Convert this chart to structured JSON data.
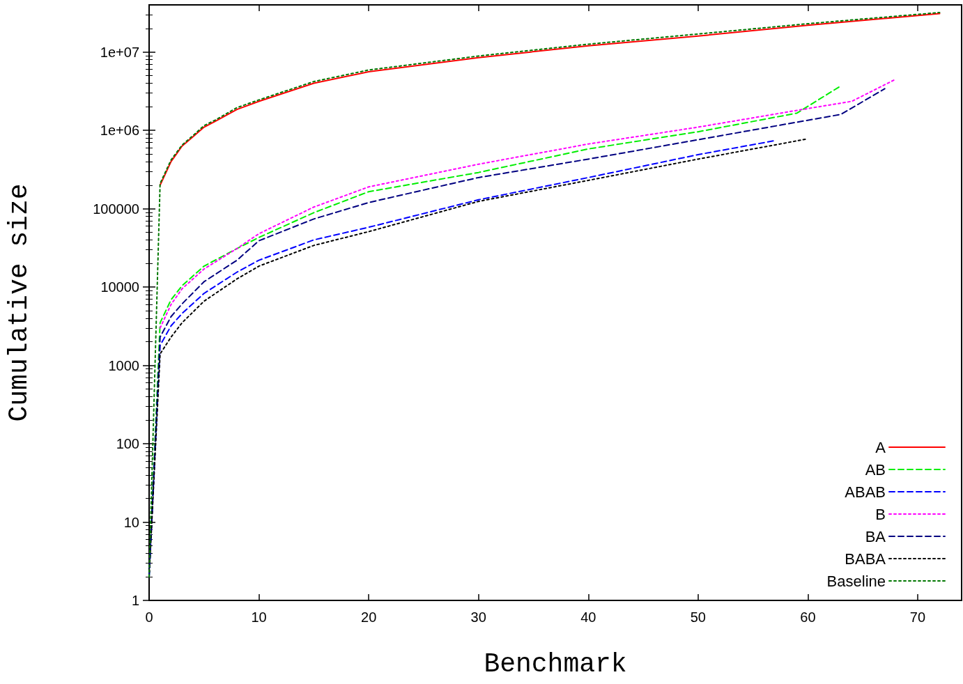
{
  "chart_data": {
    "type": "line",
    "xlabel": "Benchmark",
    "ylabel": "Cumulative size",
    "log": "y",
    "grid": false,
    "legend": "bottom right",
    "marker": "none",
    "xlim": [
      0,
      74
    ],
    "xticks": [
      0,
      10,
      20,
      30,
      40,
      50,
      60,
      70
    ],
    "ylim": [
      1,
      40000000
    ],
    "yticks": [
      1,
      10,
      100,
      1000,
      10000,
      100000,
      {
        "value": 1000000,
        "label": "1e+06"
      },
      {
        "value": 10000000,
        "label": "1e+07"
      }
    ],
    "series": [
      {
        "name": "A",
        "color": "#ff0000",
        "line_style": "solid",
        "x": [
          1,
          2,
          3,
          4,
          5,
          6,
          8,
          10,
          15,
          20,
          30,
          40,
          50,
          60,
          72
        ],
        "values": [
          200000,
          400000,
          630000,
          830000,
          1100000,
          1300000,
          1850000,
          2350000,
          4000000,
          5600000,
          8500000,
          12000000,
          16000000,
          22000000,
          31000000
        ]
      },
      {
        "name": "AB",
        "color": "#00ee00",
        "line_style": "dashed",
        "x": [
          0,
          1,
          2,
          3,
          5,
          8,
          10,
          15,
          20,
          30,
          40,
          50,
          59,
          63
        ],
        "values": [
          2,
          3500,
          6900,
          10400,
          18500,
          31000,
          43000,
          89000,
          165000,
          290000,
          580000,
          960000,
          1660000,
          3700000
        ]
      },
      {
        "name": "ABAB",
        "color": "#0000ff",
        "line_style": "dashed",
        "x": [
          0,
          1,
          2,
          3,
          5,
          8,
          10,
          15,
          20,
          30,
          40,
          50,
          57
        ],
        "values": [
          2,
          1800,
          3200,
          4600,
          8300,
          15500,
          22000,
          40000,
          58000,
          130000,
          250000,
          490000,
          740000
        ]
      },
      {
        "name": "B",
        "color": "#ff00ff",
        "line_style": "dotted",
        "x": [
          1,
          2,
          3,
          5,
          8,
          10,
          15,
          20,
          30,
          40,
          50,
          59,
          64,
          68
        ],
        "values": [
          3000,
          6000,
          9500,
          17000,
          31000,
          48000,
          105000,
          190000,
          370000,
          670000,
          1100000,
          1800000,
          2350000,
          4500000
        ]
      },
      {
        "name": "BA",
        "color": "#000080",
        "line_style": "dashed",
        "x": [
          0,
          1,
          2,
          3,
          5,
          8,
          10,
          15,
          20,
          30,
          40,
          50,
          63,
          67
        ],
        "values": [
          2,
          2300,
          4200,
          6100,
          11700,
          22000,
          39000,
          74000,
          120000,
          250000,
          430000,
          760000,
          1600000,
          3400000
        ]
      },
      {
        "name": "BABA",
        "color": "#000000",
        "line_style": "dotted",
        "x": [
          0,
          1,
          2,
          3,
          5,
          8,
          10,
          15,
          20,
          30,
          40,
          50,
          60
        ],
        "values": [
          2,
          1400,
          2300,
          3500,
          6600,
          12700,
          18500,
          34000,
          51000,
          124000,
          230000,
          430000,
          780000
        ]
      },
      {
        "name": "Baseline",
        "color": "#007700",
        "line_style": "dotted",
        "x": [
          0,
          1,
          2,
          3,
          4,
          5,
          6,
          8,
          10,
          15,
          20,
          30,
          40,
          50,
          60,
          72
        ],
        "values": [
          2,
          210000,
          420000,
          650000,
          860000,
          1150000,
          1350000,
          1950000,
          2450000,
          4200000,
          5900000,
          8900000,
          12600000,
          17000000,
          23000000,
          32000000
        ]
      }
    ]
  }
}
